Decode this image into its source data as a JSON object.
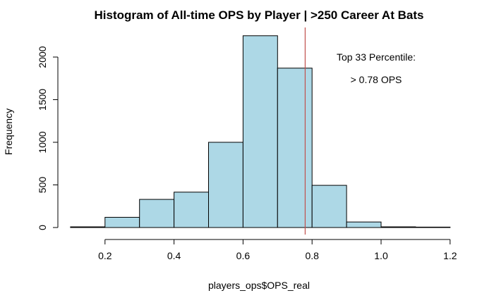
{
  "chart_data": {
    "type": "bar",
    "title": "Histogram of All-time OPS by Player | >250 Career At Bats",
    "xlabel": "players_ops$OPS_real",
    "ylabel": "Frequency",
    "bins": [
      {
        "x0": 0.1,
        "x1": 0.2,
        "count": 8
      },
      {
        "x0": 0.2,
        "x1": 0.3,
        "count": 120
      },
      {
        "x0": 0.3,
        "x1": 0.4,
        "count": 330
      },
      {
        "x0": 0.4,
        "x1": 0.5,
        "count": 415
      },
      {
        "x0": 0.5,
        "x1": 0.6,
        "count": 1000
      },
      {
        "x0": 0.6,
        "x1": 0.7,
        "count": 2250
      },
      {
        "x0": 0.7,
        "x1": 0.8,
        "count": 1870
      },
      {
        "x0": 0.8,
        "x1": 0.9,
        "count": 495
      },
      {
        "x0": 0.9,
        "x1": 1.0,
        "count": 65
      },
      {
        "x0": 1.0,
        "x1": 1.1,
        "count": 8
      },
      {
        "x0": 1.1,
        "x1": 1.2,
        "count": 5
      }
    ],
    "xlim": [
      0.1,
      1.2
    ],
    "ylim": [
      0,
      2300
    ],
    "x_ticks": [
      0.2,
      0.4,
      0.6,
      0.8,
      1.0,
      1.2
    ],
    "x_tick_labels": [
      "0.2",
      "0.4",
      "0.6",
      "0.8",
      "1.0",
      "1.2"
    ],
    "y_ticks": [
      0,
      500,
      1000,
      1500,
      2000
    ],
    "y_tick_labels": [
      "0",
      "500",
      "1000",
      "1500",
      "2000"
    ],
    "vline": {
      "x": 0.78,
      "color": "#c0504d"
    },
    "annotations": [
      "Top 33 Percentile:",
      "> 0.78 OPS"
    ],
    "bar_color": "#add8e6",
    "grid": false,
    "legend": "none"
  }
}
